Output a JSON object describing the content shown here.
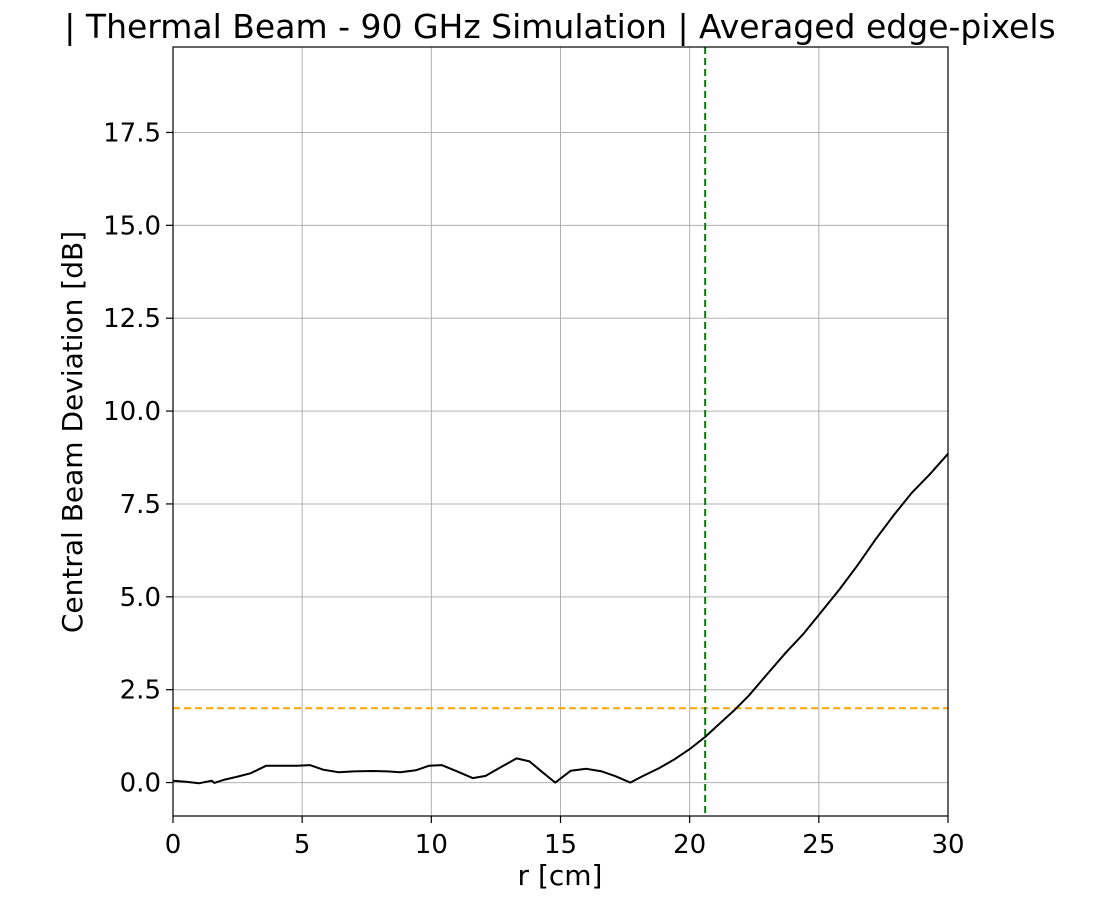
{
  "chart_data": {
    "type": "line",
    "title": "| Thermal Beam - 90 GHz Simulation | Averaged edge-pixels",
    "xlabel": "r [cm]",
    "ylabel": "Central Beam Deviation [dB]",
    "xlim": [
      0,
      30
    ],
    "ylim": [
      -0.9,
      19.8
    ],
    "grid": true,
    "xticks": [
      0,
      5,
      10,
      15,
      20,
      25,
      30
    ],
    "xtick_labels": [
      "0",
      "5",
      "10",
      "15",
      "20",
      "25",
      "30"
    ],
    "yticks": [
      0,
      2.5,
      5,
      7.5,
      10,
      12.5,
      15,
      17.5
    ],
    "ytick_labels": [
      "0.0",
      "2.5",
      "5.0",
      "7.5",
      "10.0",
      "12.5",
      "15.0",
      "17.5"
    ],
    "series": [
      {
        "name": "deviation",
        "color": "#000000",
        "style": "solid",
        "x": [
          0,
          0.5,
          1.0,
          1.5,
          1.6,
          2.0,
          2.5,
          3.0,
          3.6,
          4.2,
          4.8,
          5.3,
          5.8,
          6.4,
          7.0,
          7.7,
          8.3,
          8.8,
          9.4,
          9.9,
          10.4,
          11.0,
          11.6,
          12.1,
          12.7,
          13.3,
          13.8,
          14.3,
          14.8,
          15.4,
          16.0,
          16.6,
          17.1,
          17.7,
          18.2,
          18.8,
          19.4,
          20.0,
          20.6,
          21.1,
          21.7,
          22.3,
          23.0,
          23.7,
          24.4,
          25.1,
          25.8,
          26.5,
          27.2,
          27.9,
          28.6,
          29.3,
          30.0
        ],
        "y": [
          0.05,
          0.02,
          -0.02,
          0.05,
          -0.01,
          0.08,
          0.16,
          0.25,
          0.45,
          0.45,
          0.45,
          0.47,
          0.35,
          0.28,
          0.3,
          0.31,
          0.3,
          0.28,
          0.33,
          0.45,
          0.47,
          0.3,
          0.12,
          0.18,
          0.42,
          0.65,
          0.57,
          0.28,
          0.0,
          0.32,
          0.37,
          0.3,
          0.18,
          0.0,
          0.18,
          0.38,
          0.62,
          0.9,
          1.23,
          1.55,
          1.93,
          2.35,
          2.92,
          3.48,
          4.0,
          4.6,
          5.2,
          5.85,
          6.55,
          7.2,
          7.8,
          8.3,
          8.85
        ]
      }
    ],
    "reference_lines": [
      {
        "orientation": "horizontal",
        "value": 2.0,
        "color": "#ffa500",
        "style": "dashed"
      },
      {
        "orientation": "vertical",
        "value": 20.6,
        "color": "#008000",
        "style": "dashed"
      }
    ]
  }
}
